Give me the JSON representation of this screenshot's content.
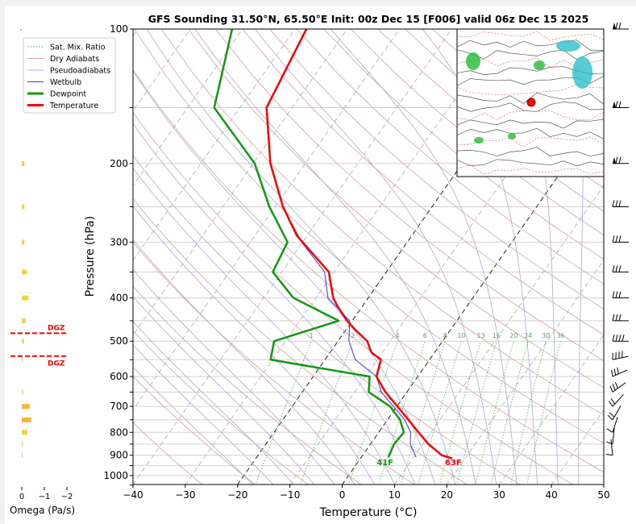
{
  "chart_data": {
    "type": "line",
    "title": "GFS Sounding 31.50°N, 65.50°E Init: 00z Dec 15 [F006] valid 06z Dec 15 2025",
    "xlabel": "Temperature (°C)",
    "ylabel": "Pressure (hPa)",
    "xlim": [
      -40,
      50
    ],
    "ylim": [
      1050,
      100
    ],
    "x_ticks": [
      -40,
      -30,
      -20,
      -10,
      0,
      10,
      20,
      30,
      40,
      50
    ],
    "y_ticks": [
      100,
      200,
      300,
      400,
      500,
      600,
      700,
      800,
      900,
      1000
    ],
    "legend": {
      "placement": "top-left",
      "entries": [
        "Sat. Mix. Ratio",
        "Dry Adiabats",
        "Pseudoadiabats",
        "Wetbulb",
        "Dewpoint",
        "Temperature"
      ]
    },
    "series": [
      {
        "name": "Temperature",
        "color": "#ff0000",
        "p": [
          915,
          900,
          850,
          800,
          750,
          700,
          650,
          600,
          550,
          530,
          500,
          470,
          450,
          418,
          400,
          350,
          290,
          250,
          200,
          150,
          100
        ],
        "t": [
          17.5,
          15.1,
          11.1,
          7.6,
          4.0,
          0.1,
          -4.1,
          -7.9,
          -9.3,
          -12.1,
          -14.4,
          -18.4,
          -21.0,
          -24.7,
          -26.7,
          -31.0,
          -42.0,
          -48.5,
          -56.7,
          -64.9,
          -67.8
        ]
      },
      {
        "name": "Dewpoint",
        "color": "#119911",
        "p": [
          910,
          850,
          800,
          750,
          700,
          650,
          600,
          550,
          500,
          450,
          400,
          350,
          300,
          250,
          200,
          150,
          100
        ],
        "t": [
          5.2,
          4.5,
          4.8,
          2.4,
          -1.3,
          -7.3,
          -9.2,
          -30.4,
          -32.2,
          -22.6,
          -34.3,
          -41.7,
          -42.9,
          -51.1,
          -59.7,
          -74.9,
          -82.0
        ]
      },
      {
        "name": "Wetbulb",
        "color": "#3333ff",
        "p": [
          910,
          850,
          800,
          750,
          650,
          600,
          550,
          500,
          450,
          400,
          350,
          300,
          250
        ],
        "t": [
          10.5,
          7.6,
          6.1,
          3.3,
          -4.9,
          -7.9,
          -14.2,
          -17.9,
          -20.5,
          -27.7,
          -31.8,
          -40.2,
          -48.5
        ]
      }
    ],
    "annotations": {
      "surface_temp": "63F",
      "surface_dewpoint": "41F"
    },
    "mixing_ratio_labels": [
      "1",
      "2",
      "4",
      "6",
      "8",
      "10",
      "13",
      "16",
      "20",
      "24",
      "30",
      "36"
    ],
    "mixing_ratio_values": [
      1,
      2,
      4,
      6,
      8,
      10,
      13,
      16,
      20,
      24,
      30,
      36
    ],
    "highlight_isotherms": [
      -20,
      0
    ],
    "omega": {
      "xlabel": "Omega (Pa/s)",
      "x_ticks": [
        "0",
        "−1",
        "−2"
      ],
      "x_tick_values": [
        0,
        -1,
        -2
      ],
      "p": [
        200,
        250,
        300,
        350,
        400,
        450,
        500,
        550,
        650,
        700,
        750,
        800,
        850,
        900
      ],
      "values": [
        -0.12,
        -0.12,
        -0.12,
        -0.22,
        -0.28,
        -0.18,
        -0.1,
        -0.05,
        -0.05,
        -0.35,
        -0.42,
        -0.25,
        -0.05,
        -0.01
      ],
      "dgz_label": "DGZ",
      "dgz_p": [
        480,
        540
      ]
    },
    "wind_barb_levels": [
      100,
      150,
      200,
      250,
      300,
      350,
      400,
      450,
      500,
      550,
      600,
      650,
      700,
      750,
      800,
      850,
      900
    ]
  }
}
